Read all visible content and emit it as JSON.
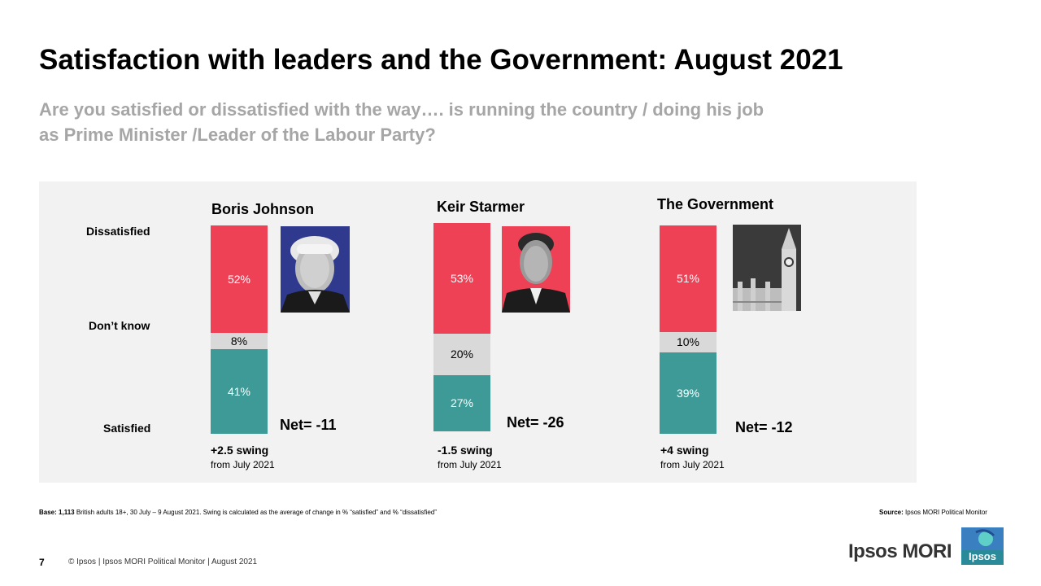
{
  "header": {
    "title": "Satisfaction with leaders and the Government: August 2021",
    "subtitle_line1": "Are you satisfied or dissatisfied with the way…. is running the country / doing his job",
    "subtitle_line2": "as Prime Minister /Leader of the Labour Party?"
  },
  "axis_labels": {
    "dissatisfied": "Dissatisfied",
    "dont_know": "Don’t know",
    "satisfied": "Satisfied"
  },
  "chart_data": {
    "type": "bar",
    "stacked": true,
    "orientation": "vertical",
    "unit": "%",
    "categories": [
      "Boris Johnson",
      "Keir Starmer",
      "The Government"
    ],
    "series": [
      {
        "name": "Dissatisfied",
        "values": [
          52,
          53,
          51
        ],
        "labels": [
          "52%",
          "53%",
          "51%"
        ]
      },
      {
        "name": "Don’t know",
        "values": [
          8,
          20,
          10
        ],
        "labels": [
          "8%",
          "20%",
          "10%"
        ]
      },
      {
        "name": "Satisfied",
        "values": [
          41,
          27,
          39
        ],
        "labels": [
          "41%",
          "27%",
          "39%"
        ]
      }
    ],
    "colors": {
      "Dissatisfied": "#ef4156",
      "Don’t know": "#d9d9d9",
      "Satisfied": "#3d9a97"
    },
    "net": [
      "Net= -11",
      "Net= -26",
      "Net= -12"
    ],
    "swing": [
      "+2.5 swing",
      "-1.5 swing",
      "+4 swing"
    ],
    "swing_from": [
      "from July 2021",
      "from July 2021",
      "from July 2021"
    ]
  },
  "photos": [
    "boris-johnson-photo",
    "keir-starmer-photo",
    "big-ben-photo"
  ],
  "footnotes": {
    "base_label": "Base:",
    "base_count": "1,113",
    "base_text": " British adults 18+, 30 July – 9 August 2021. Swing is calculated as the average of change in % “satisfied” and % “dissatisfied”",
    "source_label": "Source:",
    "source_text": " Ipsos MORI Political Monitor"
  },
  "footer": {
    "page_number": "7",
    "copyright": "© Ipsos | Ipsos MORI Political Monitor | August 2021",
    "brand": "Ipsos MORI",
    "logo_text": "Ipsos"
  }
}
